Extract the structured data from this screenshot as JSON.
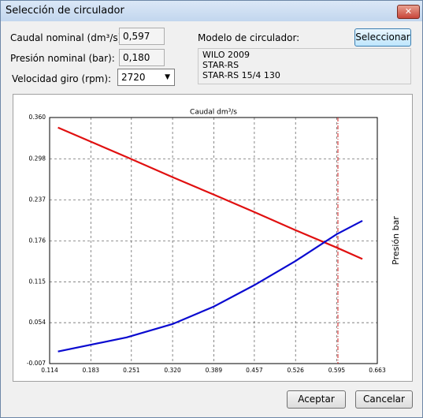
{
  "window": {
    "title": "Selección de circulador"
  },
  "form": {
    "caudal_label": "Caudal nominal (dm³/s):",
    "caudal_value": "0,597",
    "presion_label": "Presión nominal (bar):",
    "presion_value": "0,180",
    "velocidad_label": "Velocidad giro (rpm):",
    "velocidad_value": "2720",
    "modelo_label": "Modelo de circulador:",
    "seleccionar": "Seleccionar",
    "modelo_lines": [
      "WILO 2009",
      "STAR-RS",
      "STAR-RS 15/4 130"
    ]
  },
  "chart": {
    "type": "line",
    "x_label": "Caudal dm³/s",
    "y_label": "Presión bar",
    "x": [
      0.128,
      0.243,
      0.32,
      0.389,
      0.457,
      0.526,
      0.595,
      0.638
    ],
    "series": [
      {
        "color": "#e01010",
        "values": [
          0.345,
          0.301,
          0.271,
          0.245,
          0.219,
          0.192,
          0.166,
          0.149
        ]
      },
      {
        "color": "#0a0ad0",
        "values": [
          0.011,
          0.032,
          0.052,
          0.078,
          0.11,
          0.146,
          0.186,
          0.206
        ]
      }
    ],
    "marker_x": 0.597,
    "marker_color": "#d02020",
    "xlim": [
      0.114,
      0.663
    ],
    "ylim": [
      -0.007,
      0.36
    ],
    "grid": true,
    "xticks": [
      0.114,
      0.183,
      0.251,
      {
        "value": 0.32,
        "label": "0.320"
      },
      0.389,
      0.457,
      0.526,
      0.595,
      0.663
    ],
    "yticks": [
      -0.007,
      0.054,
      0.115,
      0.176,
      0.237,
      0.298,
      {
        "value": 0.36,
        "label": "0.360"
      }
    ]
  },
  "buttons": {
    "ok": "Aceptar",
    "cancel": "Cancelar"
  }
}
